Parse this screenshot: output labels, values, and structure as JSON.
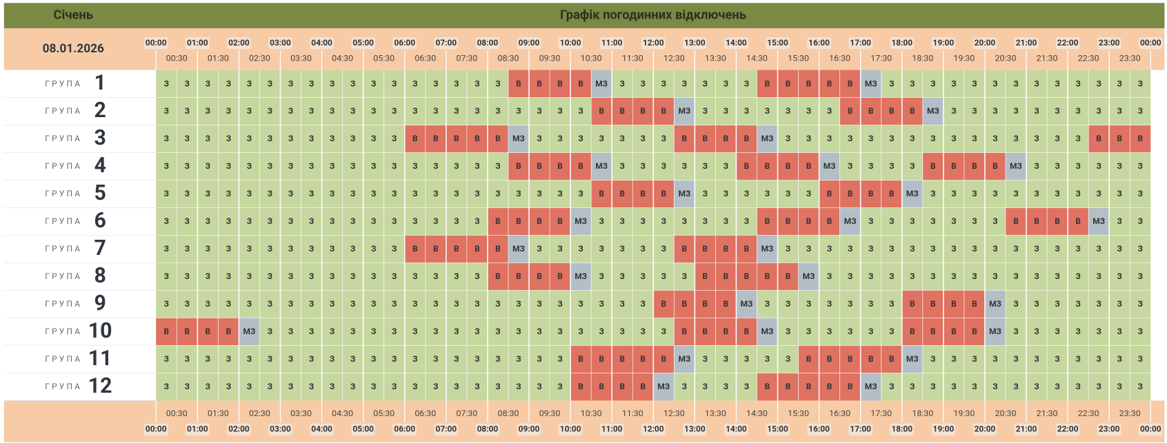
{
  "header": {
    "month": "Січень",
    "title": "Графік погодинних відключень",
    "date": "08.01.2026"
  },
  "hours": [
    "00:00",
    "01:00",
    "02:00",
    "03:00",
    "04:00",
    "05:00",
    "06:00",
    "07:00",
    "08:00",
    "09:00",
    "10:00",
    "11:00",
    "12:00",
    "13:00",
    "14:00",
    "15:00",
    "16:00",
    "17:00",
    "18:00",
    "19:00",
    "20:00",
    "21:00",
    "22:00",
    "23:00",
    "00:00"
  ],
  "half_hours": [
    "00:30",
    "01:30",
    "02:30",
    "03:30",
    "04:30",
    "05:30",
    "06:30",
    "07:30",
    "08:30",
    "09:30",
    "10:30",
    "11:30",
    "12:30",
    "13:30",
    "14:30",
    "15:30",
    "16:30",
    "17:30",
    "18:30",
    "19:30",
    "20:30",
    "21:30",
    "22:30",
    "23:30"
  ],
  "colors": {
    "З": "#c6d79f",
    "В": "#df7261",
    "МЗ": "#b2bfc6"
  },
  "groups": [
    {
      "label": "ГРУПА",
      "number": "1",
      "cells": [
        "З",
        "З",
        "З",
        "З",
        "З",
        "З",
        "З",
        "З",
        "З",
        "З",
        "З",
        "З",
        "З",
        "З",
        "З",
        "З",
        "З",
        "В",
        "В",
        "В",
        "В",
        "МЗ",
        "З",
        "З",
        "З",
        "З",
        "З",
        "З",
        "З",
        "В",
        "В",
        "В",
        "В",
        "В",
        "МЗ",
        "З",
        "З",
        "З",
        "З",
        "З",
        "З",
        "З",
        "З",
        "З",
        "З",
        "З",
        "З",
        "З"
      ]
    },
    {
      "label": "ГРУПА",
      "number": "2",
      "cells": [
        "З",
        "З",
        "З",
        "З",
        "З",
        "З",
        "З",
        "З",
        "З",
        "З",
        "З",
        "З",
        "З",
        "З",
        "З",
        "З",
        "З",
        "З",
        "З",
        "З",
        "З",
        "В",
        "В",
        "В",
        "В",
        "МЗ",
        "З",
        "З",
        "З",
        "З",
        "З",
        "З",
        "З",
        "В",
        "В",
        "В",
        "В",
        "МЗ",
        "З",
        "З",
        "З",
        "З",
        "З",
        "З",
        "З",
        "З",
        "З",
        "З"
      ]
    },
    {
      "label": "ГРУПА",
      "number": "3",
      "cells": [
        "З",
        "З",
        "З",
        "З",
        "З",
        "З",
        "З",
        "З",
        "З",
        "З",
        "З",
        "З",
        "В",
        "В",
        "В",
        "В",
        "В",
        "МЗ",
        "З",
        "З",
        "З",
        "З",
        "З",
        "З",
        "З",
        "В",
        "В",
        "В",
        "В",
        "МЗ",
        "З",
        "З",
        "З",
        "З",
        "З",
        "З",
        "З",
        "З",
        "З",
        "З",
        "З",
        "З",
        "З",
        "З",
        "З",
        "В",
        "В",
        "В"
      ]
    },
    {
      "label": "ГРУПА",
      "number": "4",
      "cells": [
        "З",
        "З",
        "З",
        "З",
        "З",
        "З",
        "З",
        "З",
        "З",
        "З",
        "З",
        "З",
        "З",
        "З",
        "З",
        "З",
        "З",
        "В",
        "В",
        "В",
        "В",
        "МЗ",
        "З",
        "З",
        "З",
        "З",
        "З",
        "З",
        "В",
        "В",
        "В",
        "В",
        "МЗ",
        "З",
        "З",
        "З",
        "З",
        "В",
        "В",
        "В",
        "В",
        "МЗ",
        "З",
        "З",
        "З",
        "З",
        "З",
        "З"
      ]
    },
    {
      "label": "ГРУПА",
      "number": "5",
      "cells": [
        "З",
        "З",
        "З",
        "З",
        "З",
        "З",
        "З",
        "З",
        "З",
        "З",
        "З",
        "З",
        "З",
        "З",
        "З",
        "З",
        "З",
        "З",
        "З",
        "З",
        "З",
        "В",
        "В",
        "В",
        "В",
        "МЗ",
        "З",
        "З",
        "З",
        "З",
        "З",
        "З",
        "В",
        "В",
        "В",
        "В",
        "МЗ",
        "З",
        "З",
        "З",
        "З",
        "З",
        "З",
        "З",
        "З",
        "З",
        "З",
        "З"
      ]
    },
    {
      "label": "ГРУПА",
      "number": "6",
      "cells": [
        "З",
        "З",
        "З",
        "З",
        "З",
        "З",
        "З",
        "З",
        "З",
        "З",
        "З",
        "З",
        "З",
        "З",
        "З",
        "З",
        "В",
        "В",
        "В",
        "В",
        "МЗ",
        "З",
        "З",
        "З",
        "З",
        "З",
        "З",
        "З",
        "З",
        "В",
        "В",
        "В",
        "В",
        "МЗ",
        "З",
        "З",
        "З",
        "З",
        "З",
        "З",
        "З",
        "В",
        "В",
        "В",
        "В",
        "МЗ",
        "З",
        "З"
      ]
    },
    {
      "label": "ГРУПА",
      "number": "7",
      "cells": [
        "З",
        "З",
        "З",
        "З",
        "З",
        "З",
        "З",
        "З",
        "З",
        "З",
        "З",
        "З",
        "В",
        "В",
        "В",
        "В",
        "В",
        "МЗ",
        "З",
        "З",
        "З",
        "З",
        "З",
        "З",
        "З",
        "В",
        "В",
        "В",
        "В",
        "МЗ",
        "З",
        "З",
        "З",
        "З",
        "З",
        "З",
        "З",
        "З",
        "З",
        "З",
        "З",
        "З",
        "З",
        "З",
        "З",
        "З",
        "З",
        "З"
      ]
    },
    {
      "label": "ГРУПА",
      "number": "8",
      "cells": [
        "З",
        "З",
        "З",
        "З",
        "З",
        "З",
        "З",
        "З",
        "З",
        "З",
        "З",
        "З",
        "З",
        "З",
        "З",
        "З",
        "В",
        "В",
        "В",
        "В",
        "МЗ",
        "З",
        "З",
        "З",
        "З",
        "З",
        "В",
        "В",
        "В",
        "В",
        "В",
        "МЗ",
        "З",
        "З",
        "З",
        "З",
        "З",
        "З",
        "З",
        "З",
        "З",
        "З",
        "З",
        "З",
        "З",
        "З",
        "З",
        "З"
      ]
    },
    {
      "label": "ГРУПА",
      "number": "9",
      "cells": [
        "З",
        "З",
        "З",
        "З",
        "З",
        "З",
        "З",
        "З",
        "З",
        "З",
        "З",
        "З",
        "З",
        "З",
        "З",
        "З",
        "З",
        "З",
        "З",
        "З",
        "З",
        "З",
        "З",
        "З",
        "В",
        "В",
        "В",
        "В",
        "МЗ",
        "З",
        "З",
        "З",
        "З",
        "З",
        "З",
        "З",
        "В",
        "В",
        "В",
        "В",
        "МЗ",
        "З",
        "З",
        "З",
        "З",
        "З",
        "З",
        "З"
      ]
    },
    {
      "label": "ГРУПА",
      "number": "10",
      "cells": [
        "В",
        "В",
        "В",
        "В",
        "МЗ",
        "З",
        "З",
        "З",
        "З",
        "З",
        "З",
        "З",
        "З",
        "З",
        "З",
        "З",
        "З",
        "З",
        "З",
        "З",
        "З",
        "З",
        "З",
        "З",
        "З",
        "В",
        "В",
        "В",
        "В",
        "МЗ",
        "З",
        "З",
        "З",
        "З",
        "З",
        "З",
        "В",
        "В",
        "В",
        "В",
        "МЗ",
        "З",
        "З",
        "З",
        "З",
        "З",
        "З",
        "З"
      ]
    },
    {
      "label": "ГРУПА",
      "number": "11",
      "cells": [
        "З",
        "З",
        "З",
        "З",
        "З",
        "З",
        "З",
        "З",
        "З",
        "З",
        "З",
        "З",
        "З",
        "З",
        "З",
        "З",
        "З",
        "З",
        "З",
        "З",
        "В",
        "В",
        "В",
        "В",
        "В",
        "МЗ",
        "З",
        "З",
        "З",
        "З",
        "З",
        "В",
        "В",
        "В",
        "В",
        "В",
        "МЗ",
        "З",
        "З",
        "З",
        "З",
        "З",
        "З",
        "З",
        "З",
        "З",
        "З",
        "З"
      ]
    },
    {
      "label": "ГРУПА",
      "number": "12",
      "cells": [
        "З",
        "З",
        "З",
        "З",
        "З",
        "З",
        "З",
        "З",
        "З",
        "З",
        "З",
        "З",
        "З",
        "З",
        "З",
        "З",
        "З",
        "З",
        "З",
        "З",
        "В",
        "В",
        "В",
        "В",
        "МЗ",
        "З",
        "З",
        "З",
        "З",
        "В",
        "В",
        "В",
        "В",
        "В",
        "МЗ",
        "З",
        "З",
        "З",
        "З",
        "З",
        "З",
        "З",
        "З",
        "З",
        "З",
        "З",
        "З",
        "З"
      ]
    }
  ]
}
